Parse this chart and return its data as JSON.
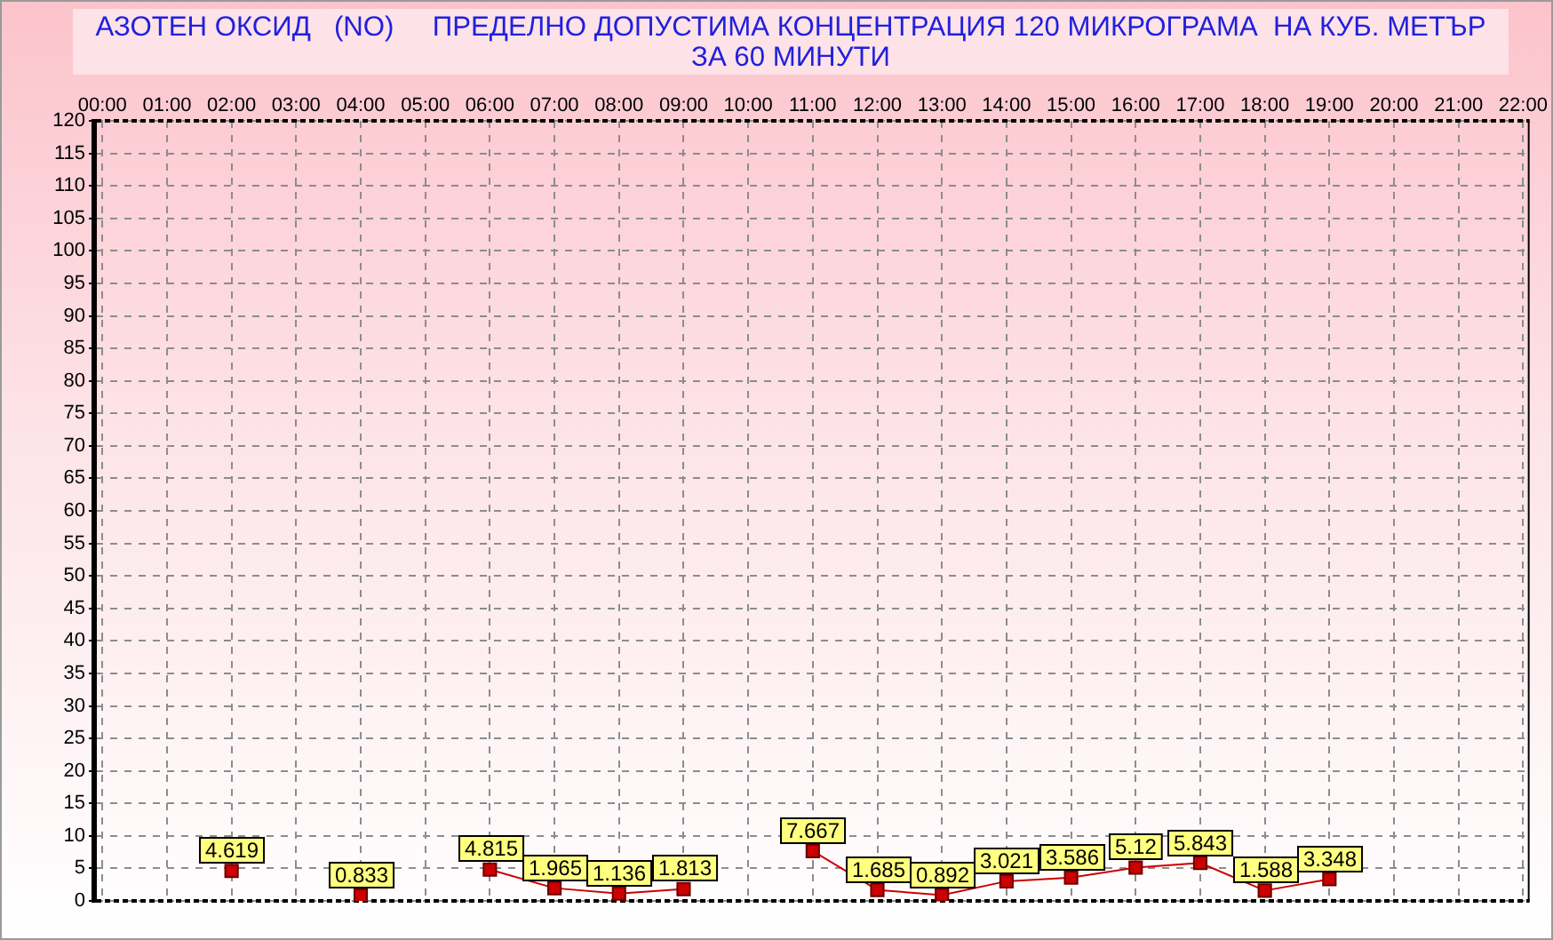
{
  "chart_data": {
    "type": "line",
    "title": "АЗОТЕН ОКСИД   (NO)     ПРЕДЕЛНО ДОПУСТИМА КОНЦЕНТРАЦИЯ 120 МИКРОГРАМА  НА КУБ. МЕТЪР",
    "subtitle": "ЗА 60 МИНУТИ",
    "x": [
      2,
      3,
      4,
      5,
      6,
      7,
      8,
      9,
      10,
      11,
      12,
      13,
      14,
      15,
      16,
      17,
      18,
      19
    ],
    "series": [
      {
        "color": "#cc0000",
        "values": [
          4.619,
          null,
          0.833,
          null,
          4.815,
          1.965,
          1.136,
          1.813,
          null,
          7.667,
          1.685,
          0.892,
          3.021,
          3.586,
          5.12,
          5.843,
          1.588,
          3.348
        ]
      }
    ],
    "xlim": [
      -0.1,
      22.1
    ],
    "xticks": [
      {
        "value": 0,
        "label": "00:00"
      },
      {
        "value": 1,
        "label": "01:00"
      },
      {
        "value": 2,
        "label": "02:00"
      },
      {
        "value": 3,
        "label": "03:00"
      },
      {
        "value": 4,
        "label": "04:00"
      },
      {
        "value": 5,
        "label": "05:00"
      },
      {
        "value": 6,
        "label": "06:00"
      },
      {
        "value": 7,
        "label": "07:00"
      },
      {
        "value": 8,
        "label": "08:00"
      },
      {
        "value": 9,
        "label": "09:00"
      },
      {
        "value": 10,
        "label": "10:00"
      },
      {
        "value": 11,
        "label": "11:00"
      },
      {
        "value": 12,
        "label": "12:00"
      },
      {
        "value": 13,
        "label": "13:00"
      },
      {
        "value": 14,
        "label": "14:00"
      },
      {
        "value": 15,
        "label": "15:00"
      },
      {
        "value": 16,
        "label": "16:00"
      },
      {
        "value": 17,
        "label": "17:00"
      },
      {
        "value": 18,
        "label": "18:00"
      },
      {
        "value": 19,
        "label": "19:00"
      },
      {
        "value": 20,
        "label": "20:00"
      },
      {
        "value": 21,
        "label": "21:00"
      },
      {
        "value": 22,
        "label": "22:00"
      }
    ],
    "ylim": [
      0,
      120
    ],
    "yticks": [
      0,
      5,
      10,
      15,
      20,
      25,
      30,
      35,
      40,
      45,
      50,
      55,
      60,
      65,
      70,
      75,
      80,
      85,
      90,
      95,
      100,
      105,
      110,
      115,
      120
    ],
    "grid": true,
    "marker": "square",
    "data_labels": true
  }
}
